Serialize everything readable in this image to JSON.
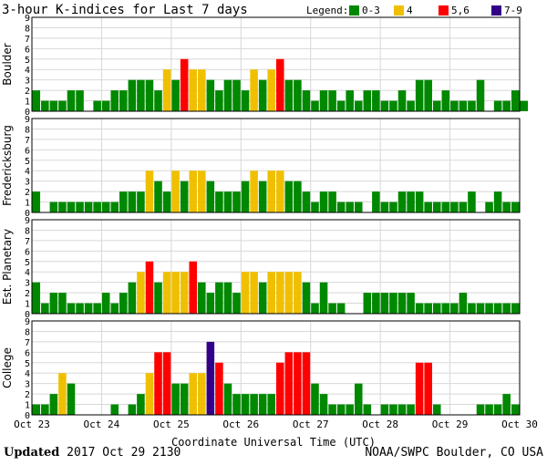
{
  "chart_data": {
    "type": "bar",
    "title": "3-hour K-indices for Last 7 days",
    "xlabel": "Coordinate Universal Time (UTC)",
    "x_ticks": [
      "Oct 23",
      "Oct 24",
      "Oct 25",
      "Oct 26",
      "Oct 27",
      "Oct 28",
      "Oct 29",
      "Oct 30"
    ],
    "ylim": [
      0,
      9
    ],
    "y_ticks": [
      "0",
      "1",
      "2",
      "3",
      "4",
      "5",
      "6",
      "7",
      "8",
      "9"
    ],
    "legend": {
      "label": "Legend:",
      "position": "top-right",
      "items": [
        {
          "label": "0-3",
          "color": "#008800"
        },
        {
          "label": "4",
          "color": "#f0c000"
        },
        {
          "label": "5,6",
          "color": "#ff0000"
        },
        {
          "label": "7-9",
          "color": "#330088"
        }
      ]
    },
    "series": [
      {
        "name": "Boulder",
        "values": [
          2,
          1,
          1,
          1,
          2,
          2,
          0,
          1,
          1,
          2,
          2,
          3,
          3,
          3,
          2,
          4,
          3,
          5,
          4,
          4,
          3,
          2,
          3,
          3,
          2,
          4,
          3,
          4,
          5,
          3,
          3,
          2,
          1,
          2,
          2,
          1,
          2,
          1,
          2,
          2,
          1,
          1,
          2,
          1,
          3,
          3,
          1,
          2,
          1,
          1,
          1,
          3,
          0,
          1,
          1,
          2,
          1,
          0
        ]
      },
      {
        "name": "Fredericksburg",
        "values": [
          2,
          0,
          1,
          1,
          1,
          1,
          1,
          1,
          1,
          1,
          2,
          2,
          2,
          4,
          3,
          2,
          4,
          3,
          4,
          4,
          3,
          2,
          2,
          2,
          3,
          4,
          3,
          4,
          4,
          3,
          3,
          2,
          1,
          2,
          2,
          1,
          1,
          1,
          0,
          2,
          1,
          1,
          2,
          2,
          2,
          1,
          1,
          1,
          1,
          1,
          2,
          0,
          1,
          2,
          1,
          1,
          0,
          0
        ]
      },
      {
        "name": "Est. Planetary",
        "values": [
          3,
          1,
          2,
          2,
          1,
          1,
          1,
          1,
          2,
          1,
          2,
          3,
          4,
          5,
          3,
          4,
          4,
          4,
          5,
          3,
          2,
          3,
          3,
          2,
          4,
          4,
          3,
          4,
          4,
          4,
          4,
          3,
          1,
          3,
          1,
          1,
          0,
          0,
          2,
          2,
          2,
          2,
          2,
          2,
          1,
          1,
          1,
          1,
          1,
          2,
          1,
          1,
          1,
          1,
          1,
          1,
          0,
          0
        ]
      },
      {
        "name": "College",
        "values": [
          1,
          1,
          2,
          4,
          3,
          0,
          0,
          0,
          0,
          1,
          0,
          1,
          2,
          4,
          6,
          6,
          3,
          3,
          4,
          4,
          7,
          5,
          3,
          2,
          2,
          2,
          2,
          2,
          5,
          6,
          6,
          6,
          3,
          2,
          1,
          1,
          1,
          3,
          1,
          0,
          1,
          1,
          1,
          1,
          5,
          5,
          1,
          0,
          0,
          0,
          0,
          1,
          1,
          1,
          2,
          1,
          0,
          0
        ]
      }
    ]
  },
  "footer": {
    "updated_label": "Updated",
    "updated_value": " 2017 Oct 29 2130",
    "credit": "NOAA/SWPC Boulder, CO USA"
  }
}
